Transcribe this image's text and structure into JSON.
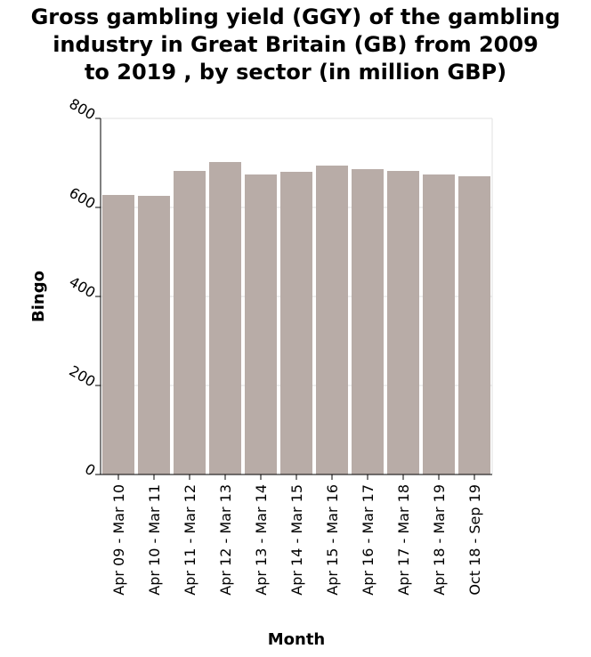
{
  "chart_data": {
    "type": "bar",
    "title_lines": [
      "Gross gambling yield (GGY) of the gambling",
      "industry in Great Britain (GB) from 2009",
      "to 2019 , by sector (in million GBP)"
    ],
    "xlabel": "Month",
    "ylabel": "Bingo",
    "categories": [
      "Apr 09 - Mar 10",
      "Apr 10 - Mar 11",
      "Apr 11 - Mar 12",
      "Apr 12 - Mar 13",
      "Apr 13 - Mar 14",
      "Apr 14 - Mar 15",
      "Apr 15 - Mar 16",
      "Apr 16 - Mar 17",
      "Apr 17 - Mar 18",
      "Apr 18 - Mar 19",
      "Oct 18 - Sep 19"
    ],
    "values": [
      628,
      626,
      682,
      702,
      674,
      680,
      694,
      686,
      682,
      674,
      670
    ],
    "ylim": [
      0,
      800
    ],
    "yticks": [
      0,
      200,
      400,
      600,
      800
    ],
    "grid": true,
    "colors": {
      "bar": "#b8aca7",
      "grid": "#e0e0e0",
      "axis": "#000000"
    }
  }
}
